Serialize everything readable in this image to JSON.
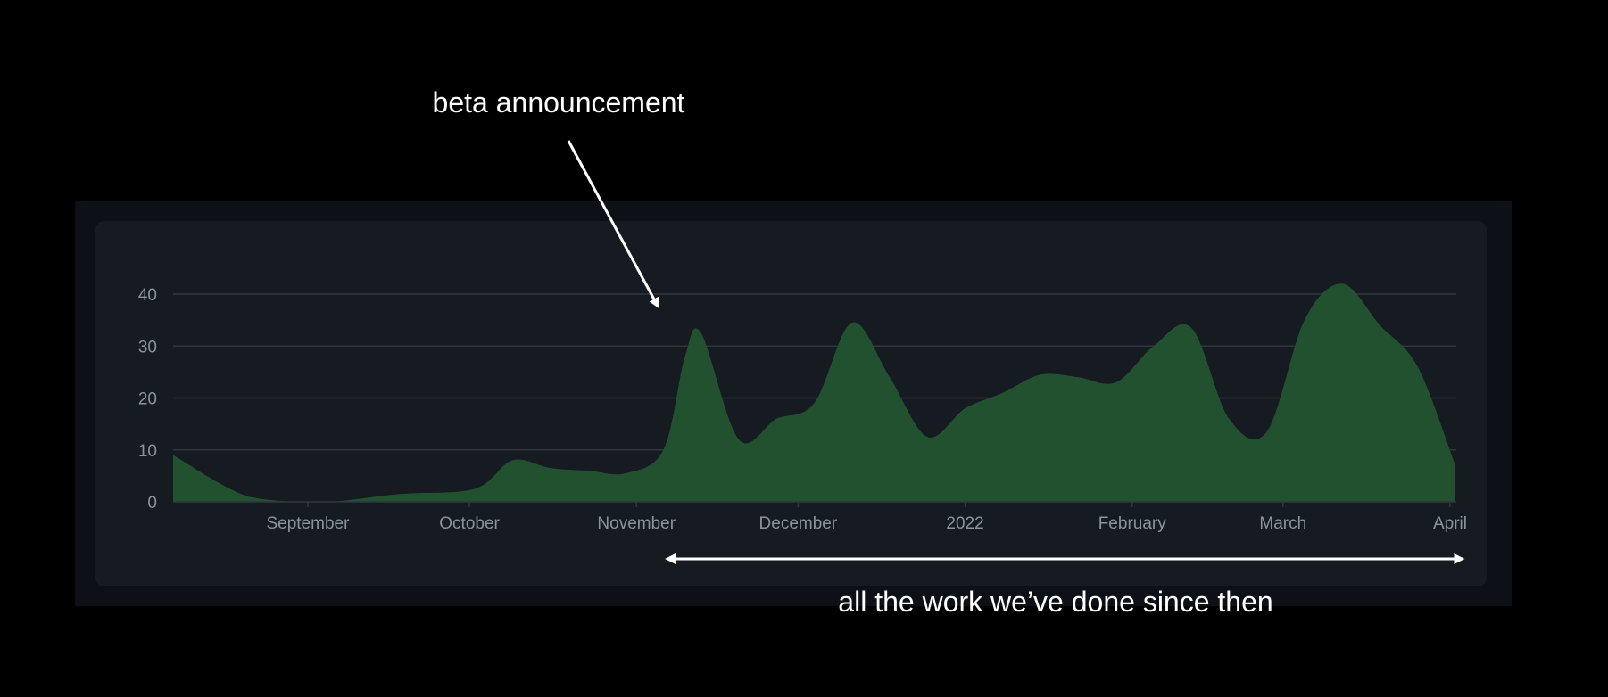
{
  "chart_data": {
    "type": "area",
    "x": [
      "2021-08-07",
      "2021-08-21",
      "2021-09-04",
      "2021-09-18",
      "2021-10-02",
      "2021-10-09",
      "2021-10-16",
      "2021-10-23",
      "2021-10-30",
      "2021-11-06",
      "2021-11-10",
      "2021-11-13",
      "2021-11-20",
      "2021-11-27",
      "2021-12-04",
      "2021-12-11",
      "2021-12-18",
      "2021-12-25",
      "2022-01-01",
      "2022-01-08",
      "2022-01-15",
      "2022-01-22",
      "2022-01-29",
      "2022-02-05",
      "2022-02-12",
      "2022-02-19",
      "2022-02-26",
      "2022-03-05",
      "2022-03-12",
      "2022-03-19",
      "2022-03-26",
      "2022-04-02"
    ],
    "values": [
      9,
      1,
      0,
      1.5,
      2.5,
      8,
      6.5,
      6,
      5.5,
      10,
      28,
      32.5,
      12,
      16,
      19,
      34.5,
      24,
      12.5,
      18,
      21,
      24.5,
      24,
      23,
      30,
      33.5,
      16,
      13.5,
      35,
      42,
      34,
      26,
      7
    ],
    "xtick_dates": [
      "2021-09-01",
      "2021-10-01",
      "2021-11-01",
      "2021-12-01",
      "2022-01-01",
      "2022-02-01",
      "2022-03-01",
      "2022-04-01"
    ],
    "xticks": [
      "September",
      "October",
      "November",
      "December",
      "2022",
      "February",
      "March",
      "April"
    ],
    "yticks": [
      0,
      10,
      20,
      30,
      40
    ],
    "ylim": [
      0,
      40
    ],
    "title": "",
    "xlabel": "",
    "ylabel": "",
    "grid": "horizontal",
    "fill_color": "#225130",
    "gridline_color": "#30363d",
    "tick_label_color": "#8b949e"
  },
  "annotations": {
    "beta_label": "beta announcement",
    "since_label": "all the work we’ve done since then",
    "beta_date": "2021-11-05",
    "range_start": "2021-11-08",
    "range_end": "2022-04-02",
    "color": "#ffffff"
  }
}
